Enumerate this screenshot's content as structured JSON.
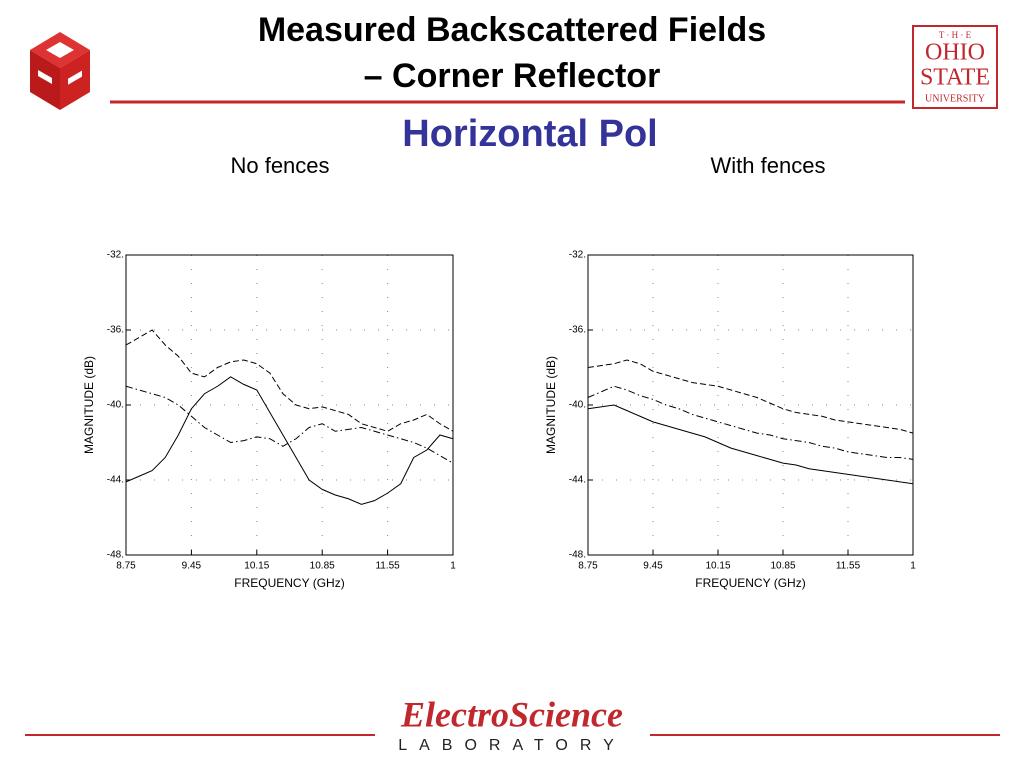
{
  "slide": {
    "title_lines": [
      "Measured Backscattered Fields",
      "– Corner Reflector"
    ],
    "subtitle": "Horizontal Pol",
    "logo_osu": [
      "T · H · E",
      "OHIO",
      "STATE",
      "UNIVERSITY"
    ],
    "footer": [
      "ElectroScience",
      "LABORATORY"
    ]
  },
  "chart_data": [
    {
      "type": "line",
      "title": "No fences",
      "xlabel": "FREQUENCY (GHz)",
      "ylabel": "MAGNITUDE (dB)",
      "grid": true,
      "xlim": [
        8.75,
        12.25
      ],
      "xticks": [
        8.75,
        9.45,
        10.15,
        10.85,
        11.55,
        {
          "value": 12.25,
          "label": "1"
        }
      ],
      "ylim": [
        -48,
        -32
      ],
      "yticks": [
        {
          "value": -32,
          "label": "-32."
        },
        {
          "value": -36,
          "label": "-36."
        },
        {
          "value": -40,
          "label": "-40."
        },
        {
          "value": -44,
          "label": "-44."
        },
        {
          "value": -48,
          "label": "-48."
        }
      ],
      "x": [
        8.75,
        8.89,
        9.03,
        9.17,
        9.31,
        9.45,
        9.59,
        9.73,
        9.87,
        10.01,
        10.15,
        10.29,
        10.43,
        10.57,
        10.71,
        10.85,
        10.99,
        11.13,
        11.27,
        11.41,
        11.55,
        11.69,
        11.83,
        11.97,
        12.11,
        12.25
      ],
      "series": [
        {
          "color": "#000000",
          "dash": "solid",
          "values": [
            -44.1,
            -43.8,
            -43.5,
            -42.8,
            -41.6,
            -40.2,
            -39.4,
            -39.0,
            -38.5,
            -38.9,
            -39.2,
            -40.4,
            -41.6,
            -42.8,
            -44.0,
            -44.5,
            -44.8,
            -45.0,
            -45.3,
            -45.1,
            -44.7,
            -44.2,
            -42.8,
            -42.4,
            -41.6,
            -41.8
          ]
        },
        {
          "color": "#000000",
          "dash": "dashed",
          "values": [
            -36.8,
            -36.4,
            -36.0,
            -36.8,
            -37.4,
            -38.3,
            -38.5,
            -38.0,
            -37.7,
            -37.6,
            -37.8,
            -38.3,
            -39.4,
            -40.0,
            -40.2,
            -40.1,
            -40.3,
            -40.5,
            -41.0,
            -41.2,
            -41.4,
            -41.0,
            -40.8,
            -40.5,
            -41.0,
            -41.4
          ]
        },
        {
          "color": "#000000",
          "dash": "dashdot",
          "values": [
            -39.0,
            -39.2,
            -39.4,
            -39.6,
            -40.0,
            -40.6,
            -41.2,
            -41.6,
            -42.0,
            -41.9,
            -41.7,
            -41.8,
            -42.2,
            -41.8,
            -41.2,
            -41.0,
            -41.4,
            -41.3,
            -41.2,
            -41.4,
            -41.6,
            -41.8,
            -42.0,
            -42.3,
            -42.7,
            -43.1
          ]
        }
      ]
    },
    {
      "type": "line",
      "title": "With fences",
      "xlabel": "FREQUENCY (GHz)",
      "ylabel": "MAGNITUDE (dB)",
      "grid": true,
      "xlim": [
        8.75,
        12.25
      ],
      "xticks": [
        8.75,
        9.45,
        10.15,
        10.85,
        11.55,
        {
          "value": 12.25,
          "label": "1"
        }
      ],
      "ylim": [
        -48,
        -32
      ],
      "yticks": [
        {
          "value": -32,
          "label": "-32."
        },
        {
          "value": -36,
          "label": "-36."
        },
        {
          "value": -40,
          "label": "-40."
        },
        {
          "value": -44,
          "label": "-44."
        },
        {
          "value": -48,
          "label": "-48."
        }
      ],
      "x": [
        8.75,
        8.89,
        9.03,
        9.17,
        9.31,
        9.45,
        9.59,
        9.73,
        9.87,
        10.01,
        10.15,
        10.29,
        10.43,
        10.57,
        10.71,
        10.85,
        10.99,
        11.13,
        11.27,
        11.41,
        11.55,
        11.69,
        11.83,
        11.97,
        12.11,
        12.25
      ],
      "series": [
        {
          "color": "#000000",
          "dash": "dashed",
          "values": [
            -38.0,
            -37.9,
            -37.8,
            -37.6,
            -37.8,
            -38.2,
            -38.4,
            -38.6,
            -38.8,
            -38.9,
            -39.0,
            -39.2,
            -39.4,
            -39.6,
            -39.9,
            -40.2,
            -40.4,
            -40.5,
            -40.6,
            -40.8,
            -40.9,
            -41.0,
            -41.1,
            -41.2,
            -41.3,
            -41.5
          ]
        },
        {
          "color": "#000000",
          "dash": "dashdot",
          "values": [
            -39.6,
            -39.3,
            -39.0,
            -39.2,
            -39.5,
            -39.7,
            -40.0,
            -40.2,
            -40.5,
            -40.7,
            -40.9,
            -41.1,
            -41.3,
            -41.5,
            -41.6,
            -41.8,
            -41.9,
            -42.0,
            -42.2,
            -42.3,
            -42.5,
            -42.6,
            -42.7,
            -42.8,
            -42.8,
            -42.9
          ]
        },
        {
          "color": "#000000",
          "dash": "solid",
          "values": [
            -40.2,
            -40.1,
            -40.0,
            -40.3,
            -40.6,
            -40.9,
            -41.1,
            -41.3,
            -41.5,
            -41.7,
            -42.0,
            -42.3,
            -42.5,
            -42.7,
            -42.9,
            -43.1,
            -43.2,
            -43.4,
            -43.5,
            -43.6,
            -43.7,
            -43.8,
            -43.9,
            -44.0,
            -44.1,
            -44.2
          ]
        }
      ]
    }
  ]
}
